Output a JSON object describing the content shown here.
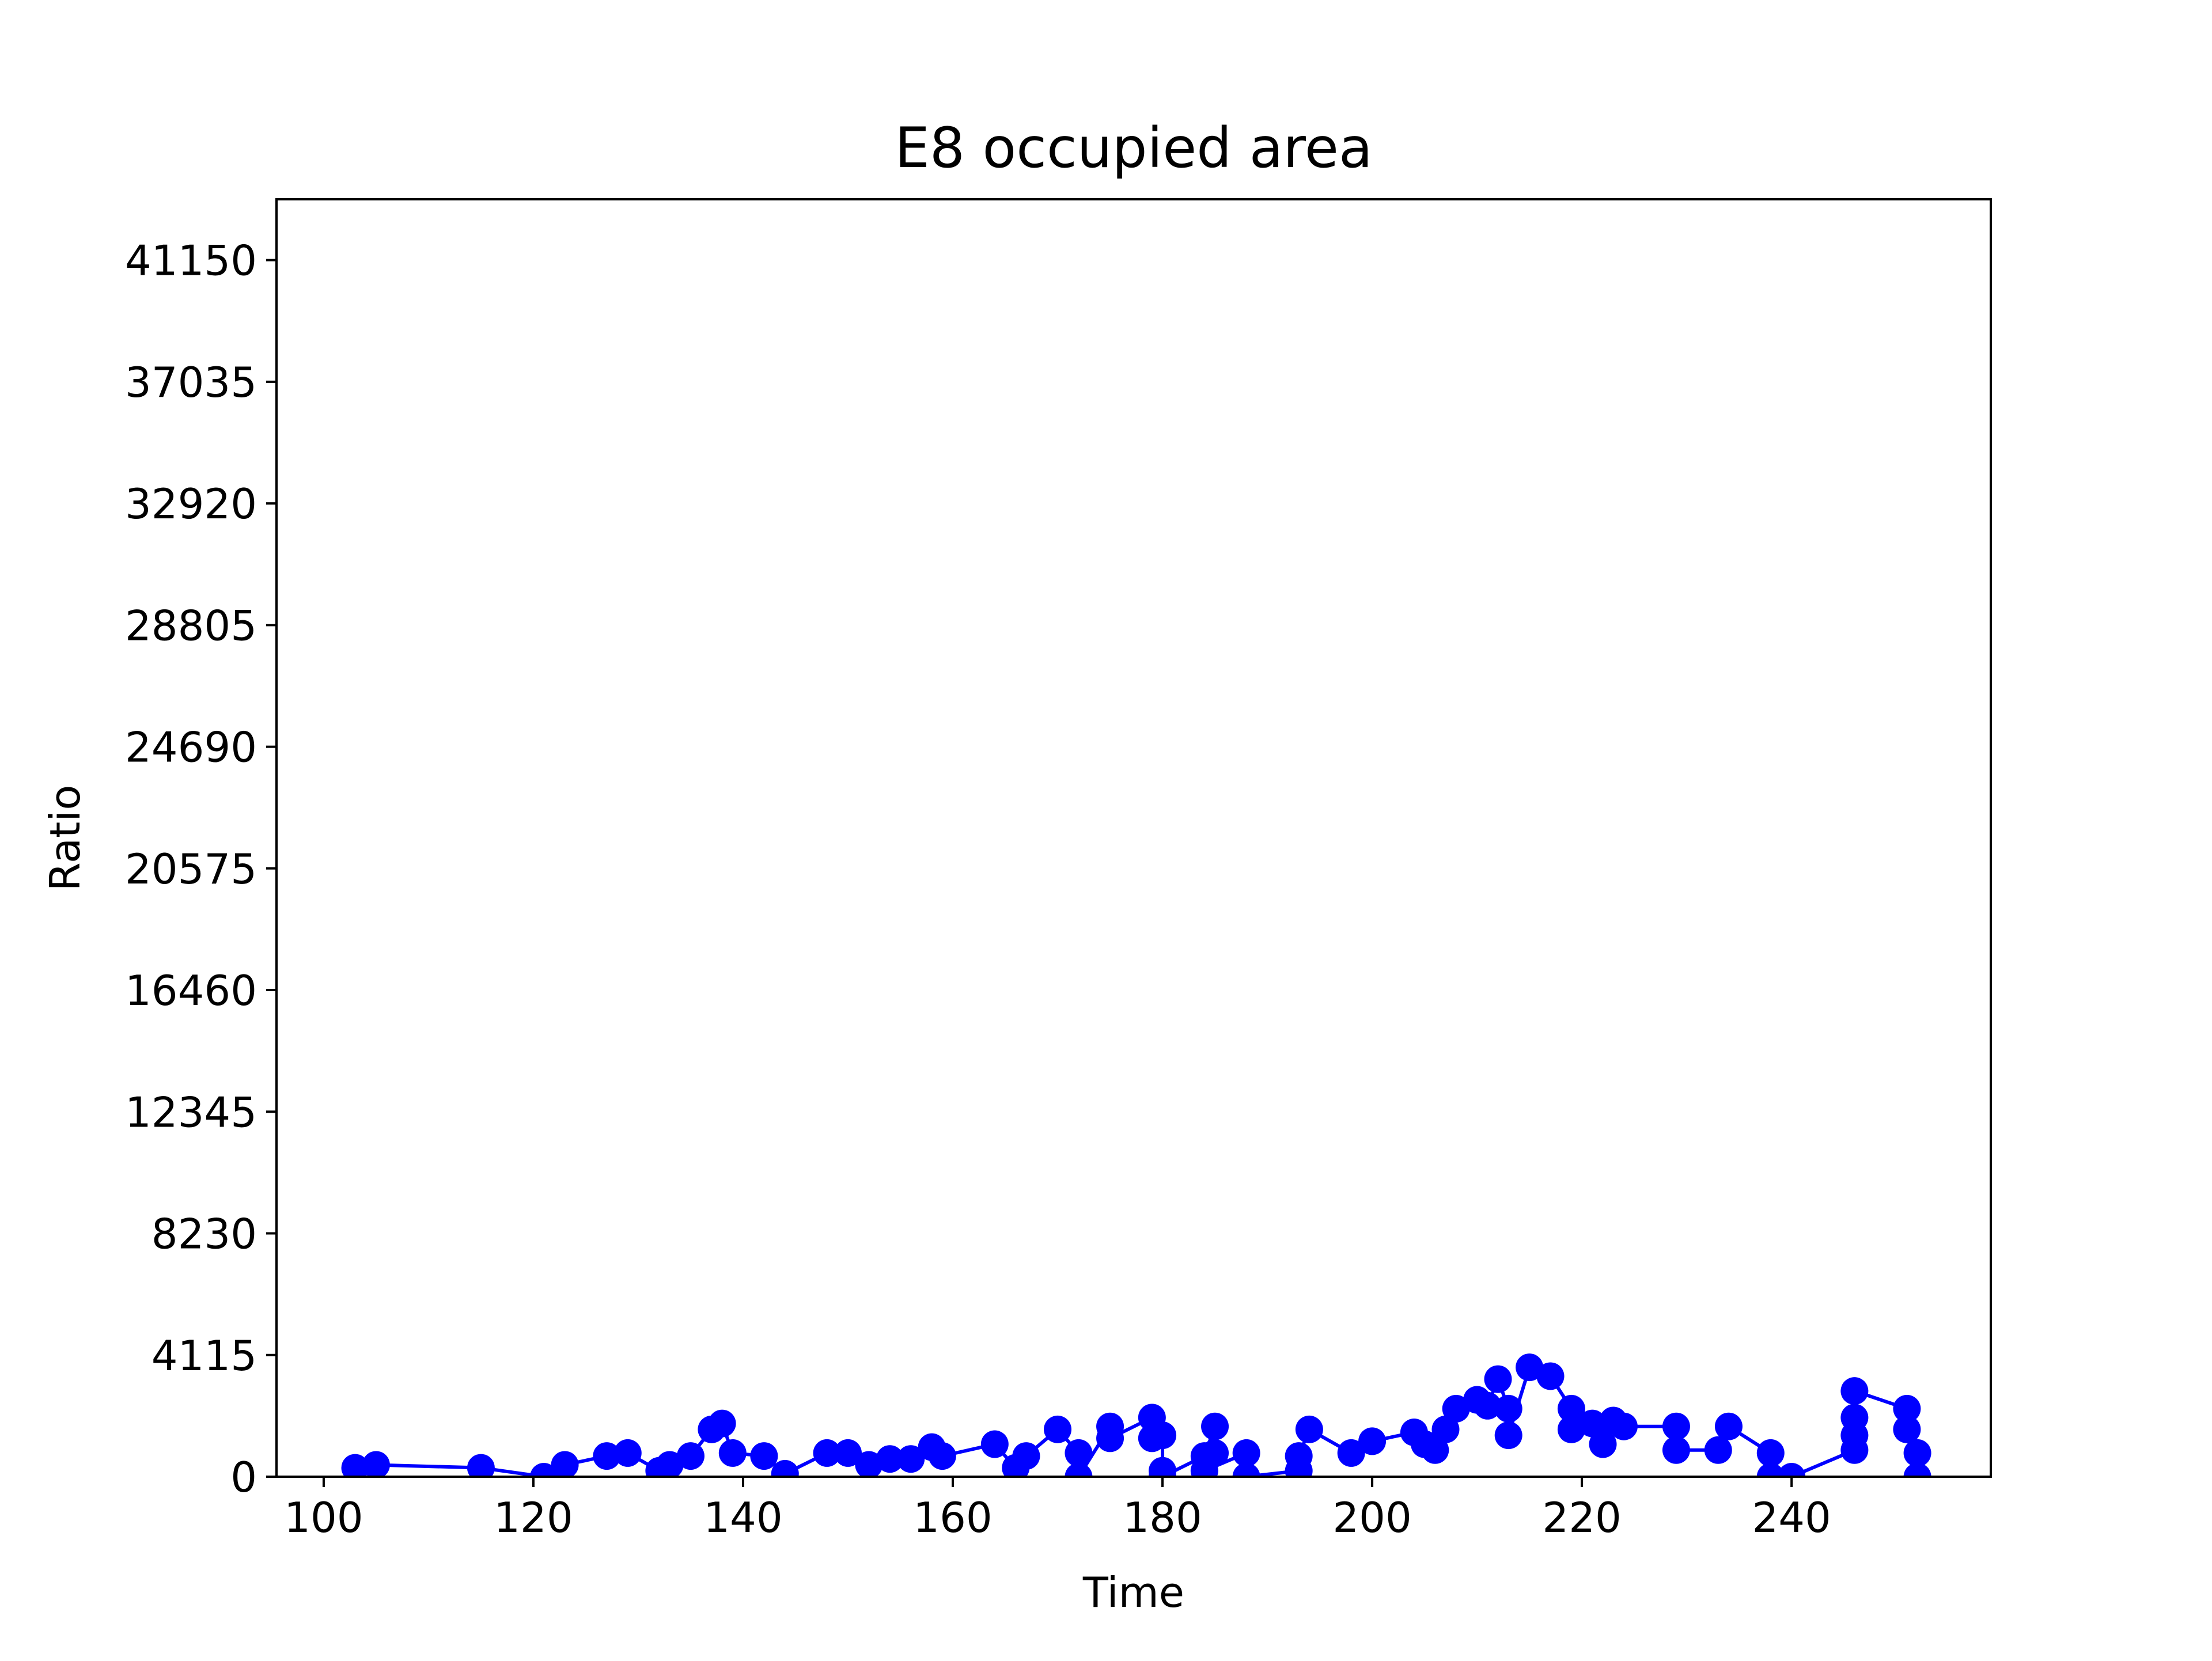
{
  "chart_data": {
    "type": "line",
    "title": "E8 occupied area",
    "xlabel": "Time",
    "ylabel": "Ratio",
    "xlim": [
      95.5,
      259
    ],
    "ylim": [
      0,
      43207.5
    ],
    "xticks": [
      100,
      120,
      140,
      160,
      180,
      200,
      220,
      240
    ],
    "yticks": [
      0,
      4115,
      8230,
      12345,
      16460,
      20575,
      24690,
      28805,
      32920,
      37035,
      41150
    ],
    "grid": false,
    "legend": "none",
    "series": [
      {
        "color": "#0000ff",
        "marker": "circle",
        "points": [
          [
            103,
            300
          ],
          [
            105,
            400
          ],
          [
            115,
            300
          ],
          [
            121,
            0
          ],
          [
            123,
            400
          ],
          [
            127,
            700
          ],
          [
            129,
            800
          ],
          [
            132,
            200
          ],
          [
            133,
            400
          ],
          [
            135,
            700
          ],
          [
            137,
            1600
          ],
          [
            138,
            1800
          ],
          [
            139,
            800
          ],
          [
            142,
            700
          ],
          [
            144,
            100
          ],
          [
            148,
            800
          ],
          [
            150,
            800
          ],
          [
            152,
            400
          ],
          [
            154,
            600
          ],
          [
            156,
            600
          ],
          [
            158,
            1000
          ],
          [
            159,
            700
          ],
          [
            164,
            1100
          ],
          [
            166,
            300
          ],
          [
            167,
            700
          ],
          [
            170,
            1600
          ],
          [
            172,
            800
          ],
          [
            172,
            0
          ],
          [
            175,
            1700
          ],
          [
            175,
            1300
          ],
          [
            179,
            2000
          ],
          [
            179,
            1300
          ],
          [
            180,
            1400
          ],
          [
            180,
            200
          ],
          [
            180,
            0
          ],
          [
            184,
            700
          ],
          [
            185,
            1700
          ],
          [
            185,
            800
          ],
          [
            184,
            200
          ],
          [
            188,
            800
          ],
          [
            188,
            0
          ],
          [
            193,
            200
          ],
          [
            193,
            700
          ],
          [
            194,
            1600
          ],
          [
            198,
            800
          ],
          [
            200,
            1200
          ],
          [
            204,
            1500
          ],
          [
            205,
            1100
          ],
          [
            206,
            900
          ],
          [
            207,
            1600
          ],
          [
            208,
            2300
          ],
          [
            210,
            2600
          ],
          [
            211,
            2400
          ],
          [
            212,
            3300
          ],
          [
            213,
            2300
          ],
          [
            213,
            1400
          ],
          [
            215,
            3700
          ],
          [
            217,
            3400
          ],
          [
            219,
            2300
          ],
          [
            219,
            1600
          ],
          [
            221,
            1800
          ],
          [
            222,
            1100
          ],
          [
            223,
            1900
          ],
          [
            224,
            1700
          ],
          [
            229,
            1700
          ],
          [
            229,
            900
          ],
          [
            233,
            900
          ],
          [
            234,
            1700
          ],
          [
            238,
            800
          ],
          [
            238,
            0
          ],
          [
            240,
            0
          ],
          [
            246,
            900
          ],
          [
            246,
            1400
          ],
          [
            246,
            2000
          ],
          [
            246,
            2900
          ],
          [
            251,
            2300
          ],
          [
            251,
            1600
          ],
          [
            252,
            800
          ],
          [
            252,
            0
          ]
        ]
      }
    ]
  }
}
